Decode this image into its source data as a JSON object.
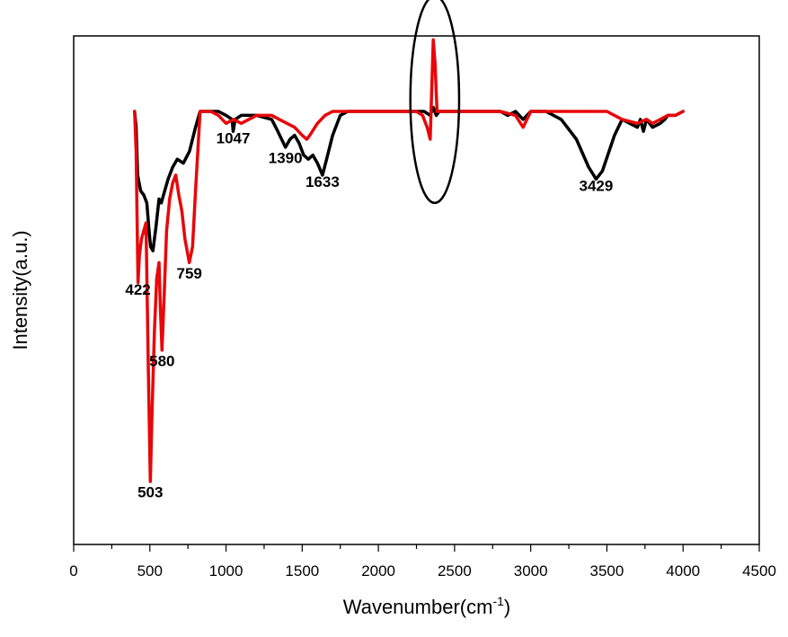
{
  "chart_data": {
    "type": "line",
    "title": "",
    "xlabel": "Wavenumber(cm",
    "xlabel_sup": "-1",
    "xlabel_close": ")",
    "ylabel": "Intensity(a.u.)",
    "xlim": [
      0,
      4500
    ],
    "ylim": [
      0,
      100
    ],
    "xticks": [
      0,
      500,
      1000,
      1500,
      2000,
      2500,
      3000,
      3500,
      4000,
      4500
    ],
    "x_minor_step": 250,
    "y_tick_labels": false,
    "grid": false,
    "legend": "none",
    "series": [
      {
        "color": "#000000",
        "points": [
          [
            400,
            100
          ],
          [
            410,
            96
          ],
          [
            420,
            84
          ],
          [
            440,
            80
          ],
          [
            460,
            79
          ],
          [
            480,
            77
          ],
          [
            495,
            70
          ],
          [
            505,
            66
          ],
          [
            520,
            65
          ],
          [
            540,
            71
          ],
          [
            560,
            78
          ],
          [
            575,
            77
          ],
          [
            590,
            79
          ],
          [
            620,
            83
          ],
          [
            650,
            86
          ],
          [
            680,
            88
          ],
          [
            720,
            87
          ],
          [
            760,
            90
          ],
          [
            800,
            96
          ],
          [
            830,
            100
          ],
          [
            900,
            100
          ],
          [
            950,
            100
          ],
          [
            1000,
            99
          ],
          [
            1040,
            98
          ],
          [
            1047,
            95
          ],
          [
            1060,
            98
          ],
          [
            1100,
            99
          ],
          [
            1200,
            99
          ],
          [
            1300,
            98
          ],
          [
            1340,
            95
          ],
          [
            1390,
            91
          ],
          [
            1420,
            93
          ],
          [
            1450,
            94
          ],
          [
            1480,
            92
          ],
          [
            1510,
            89
          ],
          [
            1540,
            88
          ],
          [
            1570,
            89
          ],
          [
            1600,
            87
          ],
          [
            1633,
            84
          ],
          [
            1660,
            88
          ],
          [
            1700,
            94
          ],
          [
            1750,
            99
          ],
          [
            1800,
            100
          ],
          [
            2000,
            100
          ],
          [
            2300,
            100
          ],
          [
            2340,
            99
          ],
          [
            2360,
            101
          ],
          [
            2380,
            99
          ],
          [
            2400,
            100
          ],
          [
            2800,
            100
          ],
          [
            2850,
            99
          ],
          [
            2900,
            100
          ],
          [
            2950,
            98
          ],
          [
            3000,
            100
          ],
          [
            3100,
            100
          ],
          [
            3200,
            98
          ],
          [
            3300,
            93
          ],
          [
            3380,
            86
          ],
          [
            3429,
            83
          ],
          [
            3470,
            85
          ],
          [
            3550,
            94
          ],
          [
            3600,
            98
          ],
          [
            3650,
            97
          ],
          [
            3700,
            96
          ],
          [
            3720,
            98
          ],
          [
            3740,
            95
          ],
          [
            3760,
            98
          ],
          [
            3800,
            96
          ],
          [
            3850,
            97
          ],
          [
            3880,
            98
          ],
          [
            3900,
            99
          ],
          [
            3950,
            99
          ],
          [
            4000,
            100
          ]
        ]
      },
      {
        "color": "#e8070a",
        "points": [
          [
            400,
            100
          ],
          [
            410,
            90
          ],
          [
            422,
            57
          ],
          [
            432,
            64
          ],
          [
            445,
            68
          ],
          [
            460,
            70
          ],
          [
            475,
            72
          ],
          [
            490,
            35
          ],
          [
            503,
            7
          ],
          [
            515,
            25
          ],
          [
            530,
            45
          ],
          [
            545,
            58
          ],
          [
            560,
            62
          ],
          [
            570,
            50
          ],
          [
            580,
            40
          ],
          [
            595,
            55
          ],
          [
            610,
            70
          ],
          [
            630,
            78
          ],
          [
            650,
            82
          ],
          [
            670,
            84
          ],
          [
            690,
            79
          ],
          [
            710,
            75
          ],
          [
            730,
            68
          ],
          [
            759,
            62
          ],
          [
            780,
            66
          ],
          [
            800,
            80
          ],
          [
            830,
            100
          ],
          [
            900,
            100
          ],
          [
            950,
            99
          ],
          [
            1000,
            97
          ],
          [
            1050,
            98
          ],
          [
            1100,
            97
          ],
          [
            1200,
            99
          ],
          [
            1300,
            99
          ],
          [
            1350,
            98
          ],
          [
            1400,
            97
          ],
          [
            1450,
            96
          ],
          [
            1500,
            94
          ],
          [
            1530,
            93
          ],
          [
            1550,
            94
          ],
          [
            1600,
            97
          ],
          [
            1650,
            99
          ],
          [
            1700,
            100
          ],
          [
            2000,
            100
          ],
          [
            2250,
            100
          ],
          [
            2290,
            99
          ],
          [
            2320,
            96
          ],
          [
            2340,
            93
          ],
          [
            2360,
            118
          ],
          [
            2372,
            112
          ],
          [
            2385,
            100
          ],
          [
            2400,
            100
          ],
          [
            2800,
            100
          ],
          [
            2900,
            99
          ],
          [
            2950,
            96
          ],
          [
            3000,
            100
          ],
          [
            3500,
            100
          ],
          [
            3600,
            98
          ],
          [
            3700,
            97
          ],
          [
            3760,
            98
          ],
          [
            3800,
            97
          ],
          [
            3850,
            98
          ],
          [
            3900,
            99
          ],
          [
            3950,
            99
          ],
          [
            4000,
            100
          ]
        ]
      }
    ],
    "annotations": [
      {
        "text": "422",
        "x": 422,
        "y": 54
      },
      {
        "text": "503",
        "x": 503,
        "y": 3
      },
      {
        "text": "580",
        "x": 580,
        "y": 36
      },
      {
        "text": "759",
        "x": 759,
        "y": 58
      },
      {
        "text": "1047",
        "x": 1047,
        "y": 92
      },
      {
        "text": "1390",
        "x": 1390,
        "y": 87
      },
      {
        "text": "1633",
        "x": 1633,
        "y": 81
      },
      {
        "text": "3429",
        "x": 3429,
        "y": 80
      }
    ],
    "highlight_ellipse": {
      "cx": 2370,
      "cy": 103,
      "rx": 160,
      "ry": 26
    }
  }
}
